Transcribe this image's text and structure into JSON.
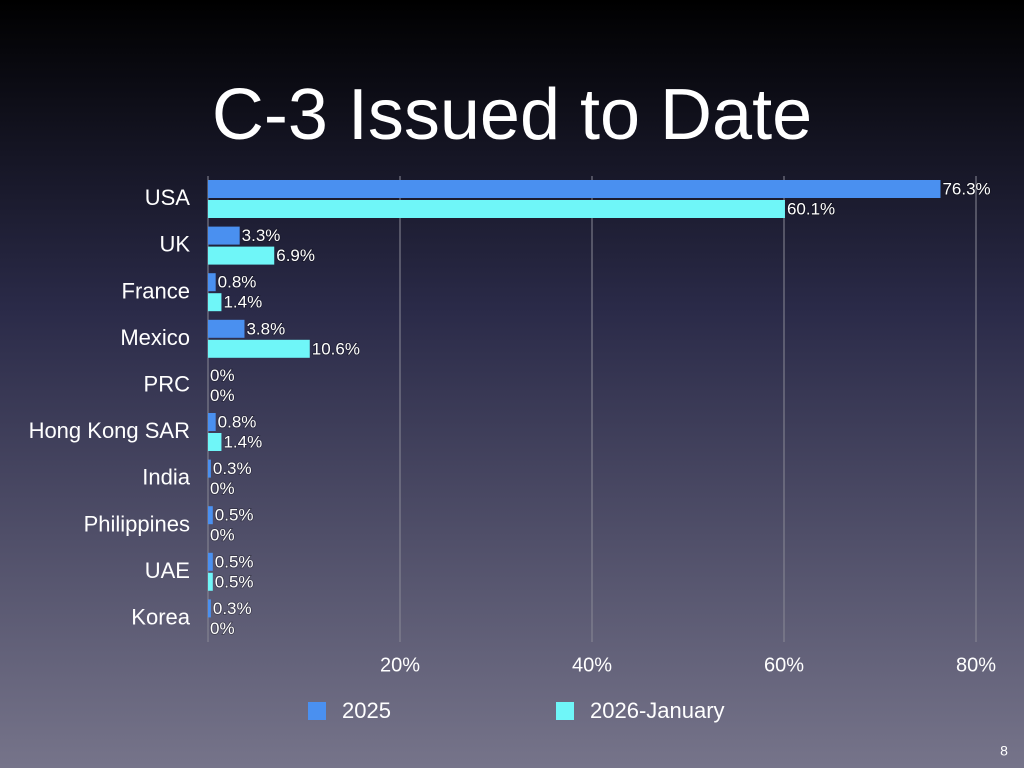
{
  "chart_data": {
    "type": "hbar",
    "title": "C-3 Issued to Date",
    "categories": [
      "USA",
      "UK",
      "France",
      "Mexico",
      "PRC",
      "Hong Kong SAR",
      "India",
      "Philippines",
      "UAE",
      "Korea"
    ],
    "series": [
      {
        "name": "2025",
        "color": "#4a90f0",
        "values": [
          76.3,
          3.3,
          0.8,
          3.8,
          0,
          0.8,
          0.3,
          0.5,
          0.5,
          0.3
        ],
        "value_labels": [
          "76.3%",
          "3.3%",
          "0.8%",
          "3.8%",
          "0%",
          "0.8%",
          "0.3%",
          "0.5%",
          "0.5%",
          "0.3%"
        ]
      },
      {
        "name": "2026-January",
        "color": "#6ff6f8",
        "values": [
          60.1,
          6.9,
          1.4,
          10.6,
          0,
          1.4,
          0,
          0,
          0.5,
          0
        ],
        "value_labels": [
          "60.1%",
          "6.9%",
          "1.4%",
          "10.6%",
          "0%",
          "1.4%",
          "0%",
          "0%",
          "0.5%",
          "0%"
        ]
      }
    ],
    "xlim": [
      0,
      82.5
    ],
    "xticks": [
      {
        "value": 20,
        "label": "20%"
      },
      {
        "value": 40,
        "label": "40%"
      },
      {
        "value": 60,
        "label": "60%"
      },
      {
        "value": 80,
        "label": "80%"
      }
    ],
    "grid": true,
    "legend": "bottom"
  },
  "slide_number": 8
}
